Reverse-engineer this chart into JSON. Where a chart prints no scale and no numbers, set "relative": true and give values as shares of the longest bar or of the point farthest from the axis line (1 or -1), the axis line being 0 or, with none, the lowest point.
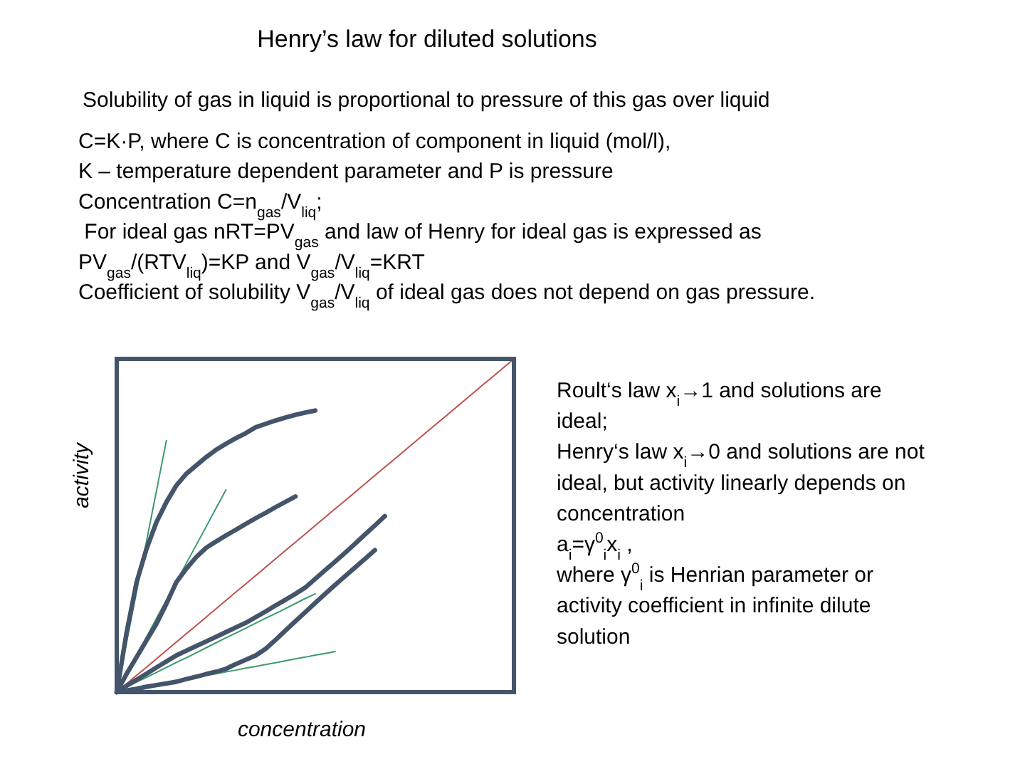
{
  "chart_data": {
    "type": "line",
    "title": "Henry’s law for diluted solutions",
    "subtitle": "Solubility of gas in liquid is proportional to pressure of this gas over liquid",
    "xlabel": "concentration",
    "ylabel": "activity",
    "relative": true,
    "line_style": "solid",
    "categories": [
      null,
      null,
      null,
      null,
      null,
      null,
      null,
      null,
      null,
      null,
      null,
      null,
      null,
      null,
      null,
      null,
      null,
      null,
      null,
      null,
      null,
      null,
      null,
      null,
      null,
      null,
      null,
      null,
      null,
      null,
      null,
      null,
      null,
      null,
      null,
      null,
      null,
      null,
      null,
      null,
      null
    ],
    "annotations": [
      "C=K·P, where C is concentration of component in liquid (mol/l),",
      "K – temperature dependent parameter and P is pressure",
      "Concentration C=n$_{gas}$/V$_{liq}$;",
      " For ideal gas nRT=PV$_{gas}$ and law of Henry for ideal gas is expressed as",
      "PV$_{gas}$/(RTV$_{liq}$)=KP and V$_{gas}$/V$_{liq}$=KRT",
      "Coefficient of solubility V$_{gas}$/V$_{liq}$ of ideal gas does not depend on gas pressure.",
      "Roult‘s law x$_{i}$→1 and solutions are ideal;",
      "Henry‘s law x$_{i}$→0 and solutions are not ideal, but activity linearly depends on concentration",
      "a$_{i}$=γ$^{0}$$_{i}$x$_{i}$ ,",
      "where γ$^{0}$$_{i}$ is Henrian parameter or activity coefficient in infinite dilute solution"
    ],
    "series": [
      {
        "color": "#c0504d",
        "values": [
          0,
          0.025,
          0.05,
          0.075,
          0.1,
          0.125,
          0.15,
          0.175,
          0.2,
          0.225,
          0.25,
          0.275,
          0.3,
          0.325,
          0.35,
          0.375,
          0.4,
          0.425,
          0.45,
          0.475,
          0.5,
          0.525,
          0.55,
          0.575,
          0.6,
          0.625,
          0.65,
          0.675,
          0.7,
          0.725,
          0.75,
          0.775,
          0.8,
          0.825,
          0.85,
          0.875,
          0.9,
          0.925,
          0.95,
          0.975,
          1
        ]
      },
      {
        "color": "#3c9a6c",
        "values": [
          0,
          0.151,
          0.302,
          0.453,
          0.604,
          0.755,
          null,
          null,
          null,
          null,
          null,
          null,
          null,
          null,
          null,
          null,
          null,
          null,
          null,
          null,
          null,
          null,
          null,
          null,
          null,
          null,
          null,
          null,
          null,
          null,
          null,
          null,
          null,
          null,
          null,
          null,
          null,
          null,
          null,
          null,
          null
        ]
      },
      {
        "color": "#3c9a6c",
        "values": [
          0,
          0.055,
          0.11,
          0.165,
          0.221,
          0.276,
          0.331,
          0.386,
          0.441,
          0.496,
          0.552,
          0.607,
          null,
          null,
          null,
          null,
          null,
          null,
          null,
          null,
          null,
          null,
          null,
          null,
          null,
          null,
          null,
          null,
          null,
          null,
          null,
          null,
          null,
          null,
          null,
          null,
          null,
          null,
          null,
          null,
          null
        ]
      },
      {
        "color": "#3c9a6c",
        "values": [
          0,
          0.015,
          0.03,
          0.044,
          0.059,
          0.074,
          0.089,
          0.103,
          0.118,
          0.133,
          0.148,
          0.163,
          0.177,
          0.192,
          0.207,
          0.222,
          0.236,
          0.251,
          0.266,
          0.281,
          0.295,
          null,
          null,
          null,
          null,
          null,
          null,
          null,
          null,
          null,
          null,
          null,
          null,
          null,
          null,
          null,
          null,
          null,
          null,
          null,
          null
        ]
      },
      {
        "color": "#3c9a6c",
        "values": [
          0,
          0.006,
          0.011,
          0.017,
          0.022,
          0.028,
          0.033,
          0.039,
          0.044,
          0.05,
          0.055,
          0.061,
          0.066,
          0.072,
          0.077,
          0.083,
          0.088,
          0.094,
          0.1,
          0.105,
          0.111,
          0.116,
          0.122,
          null,
          null,
          null,
          null,
          null,
          null,
          null,
          null,
          null,
          null,
          null,
          null,
          null,
          null,
          null,
          null,
          null,
          null
        ]
      },
      {
        "color": "#44546a",
        "values": [
          0,
          0.18,
          0.33,
          0.43,
          0.51,
          0.57,
          0.62,
          0.655,
          0.68,
          0.705,
          0.727,
          0.745,
          0.762,
          0.777,
          0.795,
          0.805,
          0.815,
          0.824,
          0.832,
          0.839,
          0.845,
          null,
          null,
          null,
          null,
          null,
          null,
          null,
          null,
          null,
          null,
          null,
          null,
          null,
          null,
          null,
          null,
          null,
          null,
          null,
          null
        ]
      },
      {
        "color": "#44546a",
        "values": [
          0,
          0.055,
          0.105,
          0.155,
          0.205,
          0.265,
          0.33,
          0.37,
          0.405,
          0.433,
          0.452,
          0.47,
          0.487,
          0.505,
          0.522,
          0.538,
          0.555,
          0.571,
          0.587,
          null,
          null,
          null,
          null,
          null,
          null,
          null,
          null,
          null,
          null,
          null,
          null,
          null,
          null,
          null,
          null,
          null,
          null,
          null,
          null,
          null,
          null
        ]
      },
      {
        "color": "#44546a",
        "values": [
          0,
          0.019,
          0.037,
          0.055,
          0.074,
          0.092,
          0.11,
          0.124,
          0.138,
          0.152,
          0.166,
          0.18,
          0.194,
          0.208,
          0.225,
          0.242,
          0.26,
          0.277,
          0.295,
          0.314,
          0.34,
          0.366,
          0.392,
          0.418,
          0.445,
          0.473,
          0.5,
          0.528,
          null,
          null,
          null,
          null,
          null,
          null,
          null,
          null,
          null,
          null,
          null,
          null,
          null
        ]
      },
      {
        "color": "#44546a",
        "values": [
          0,
          0.005,
          0.01,
          0.016,
          0.021,
          0.026,
          0.031,
          0.039,
          0.046,
          0.054,
          0.061,
          0.07,
          0.084,
          0.097,
          0.11,
          0.13,
          0.157,
          0.185,
          0.213,
          0.24,
          0.268,
          0.295,
          0.322,
          0.348,
          0.374,
          0.4,
          0.426,
          null,
          null,
          null,
          null,
          null,
          null,
          null,
          null,
          null,
          null,
          null,
          null,
          null,
          null
        ]
      }
    ]
  }
}
